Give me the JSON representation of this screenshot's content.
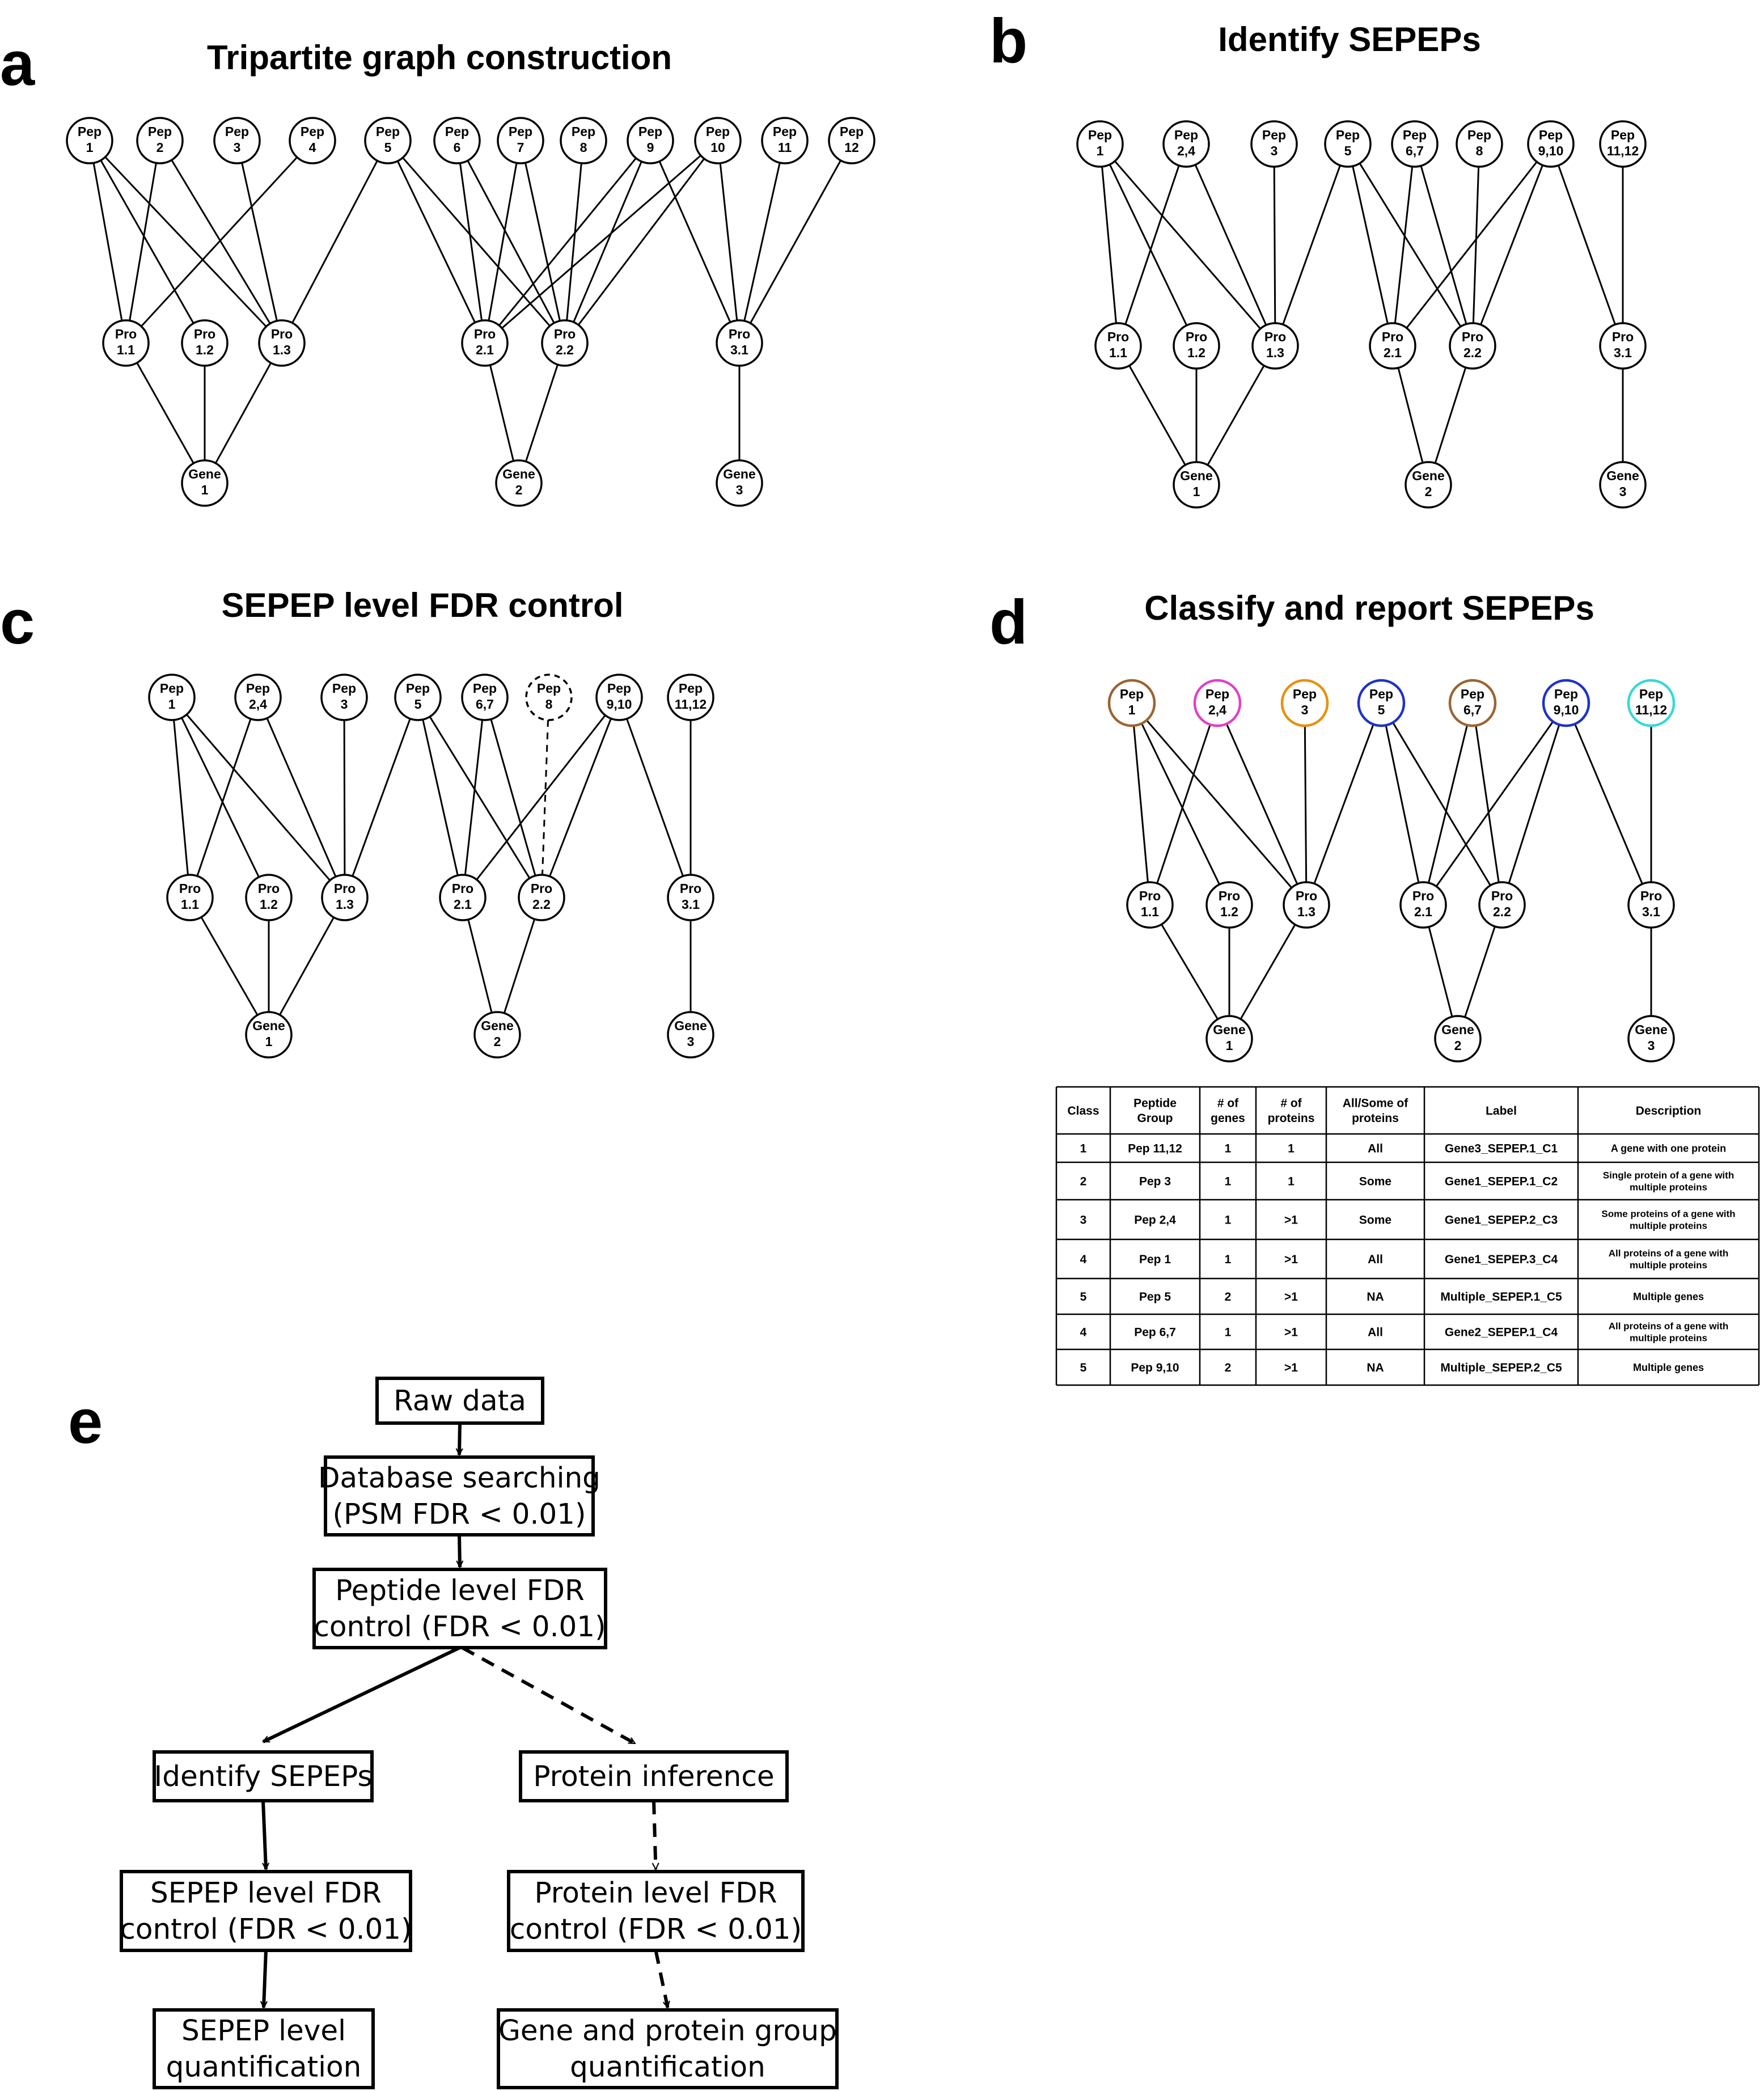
{
  "panels": {
    "a": {
      "letter": "a",
      "title": "Tripartite graph construction"
    },
    "b": {
      "letter": "b",
      "title": "Identify SEPEPs"
    },
    "c": {
      "letter": "c",
      "title": "SEPEP level FDR control"
    },
    "d": {
      "letter": "d",
      "title": "Classify and report SEPEPs"
    },
    "e": {
      "letter": "e"
    }
  },
  "graphs": {
    "a": {
      "nodes": [
        {
          "id": "p1",
          "lines": [
            "Pep",
            "1"
          ]
        },
        {
          "id": "p2",
          "lines": [
            "Pep",
            "2"
          ]
        },
        {
          "id": "p3",
          "lines": [
            "Pep",
            "3"
          ]
        },
        {
          "id": "p4",
          "lines": [
            "Pep",
            "4"
          ]
        },
        {
          "id": "p5",
          "lines": [
            "Pep",
            "5"
          ]
        },
        {
          "id": "p6",
          "lines": [
            "Pep",
            "6"
          ]
        },
        {
          "id": "p7",
          "lines": [
            "Pep",
            "7"
          ]
        },
        {
          "id": "p8",
          "lines": [
            "Pep",
            "8"
          ]
        },
        {
          "id": "p9",
          "lines": [
            "Pep",
            "9"
          ]
        },
        {
          "id": "p10",
          "lines": [
            "Pep",
            "10"
          ]
        },
        {
          "id": "p11",
          "lines": [
            "Pep",
            "11"
          ]
        },
        {
          "id": "p12",
          "lines": [
            "Pep",
            "12"
          ]
        },
        {
          "id": "r11",
          "lines": [
            "Pro",
            "1.1"
          ]
        },
        {
          "id": "r12",
          "lines": [
            "Pro",
            "1.2"
          ]
        },
        {
          "id": "r13",
          "lines": [
            "Pro",
            "1.3"
          ]
        },
        {
          "id": "r21",
          "lines": [
            "Pro",
            "2.1"
          ]
        },
        {
          "id": "r22",
          "lines": [
            "Pro",
            "2.2"
          ]
        },
        {
          "id": "r31",
          "lines": [
            "Pro",
            "3.1"
          ]
        },
        {
          "id": "g1",
          "lines": [
            "Gene",
            "1"
          ]
        },
        {
          "id": "g2",
          "lines": [
            "Gene",
            "2"
          ]
        },
        {
          "id": "g3",
          "lines": [
            "Gene",
            "3"
          ]
        }
      ],
      "edges": [
        [
          "p1",
          "r11"
        ],
        [
          "p1",
          "r12"
        ],
        [
          "p1",
          "r13"
        ],
        [
          "p2",
          "r11"
        ],
        [
          "p2",
          "r13"
        ],
        [
          "p3",
          "r13"
        ],
        [
          "p4",
          "r11"
        ],
        [
          "p5",
          "r13"
        ],
        [
          "p5",
          "r21"
        ],
        [
          "p5",
          "r22"
        ],
        [
          "p6",
          "r21"
        ],
        [
          "p6",
          "r22"
        ],
        [
          "p7",
          "r21"
        ],
        [
          "p7",
          "r22"
        ],
        [
          "p8",
          "r22"
        ],
        [
          "p9",
          "r21"
        ],
        [
          "p9",
          "r22"
        ],
        [
          "p9",
          "r31"
        ],
        [
          "p10",
          "r21"
        ],
        [
          "p10",
          "r22"
        ],
        [
          "p10",
          "r31"
        ],
        [
          "p11",
          "r31"
        ],
        [
          "p12",
          "r31"
        ],
        [
          "r11",
          "g1"
        ],
        [
          "r12",
          "g1"
        ],
        [
          "r13",
          "g1"
        ],
        [
          "r21",
          "g2"
        ],
        [
          "r22",
          "g2"
        ],
        [
          "r31",
          "g3"
        ]
      ]
    },
    "b": {
      "nodes": [
        {
          "id": "p1",
          "lines": [
            "Pep",
            "1"
          ]
        },
        {
          "id": "p24",
          "lines": [
            "Pep",
            "2,4"
          ]
        },
        {
          "id": "p3",
          "lines": [
            "Pep",
            "3"
          ]
        },
        {
          "id": "p5",
          "lines": [
            "Pep",
            "5"
          ]
        },
        {
          "id": "p67",
          "lines": [
            "Pep",
            "6,7"
          ]
        },
        {
          "id": "p8",
          "lines": [
            "Pep",
            "8"
          ]
        },
        {
          "id": "p910",
          "lines": [
            "Pep",
            "9,10"
          ]
        },
        {
          "id": "p1112",
          "lines": [
            "Pep",
            "11,12"
          ]
        },
        {
          "id": "r11",
          "lines": [
            "Pro",
            "1.1"
          ]
        },
        {
          "id": "r12",
          "lines": [
            "Pro",
            "1.2"
          ]
        },
        {
          "id": "r13",
          "lines": [
            "Pro",
            "1.3"
          ]
        },
        {
          "id": "r21",
          "lines": [
            "Pro",
            "2.1"
          ]
        },
        {
          "id": "r22",
          "lines": [
            "Pro",
            "2.2"
          ]
        },
        {
          "id": "r31",
          "lines": [
            "Pro",
            "3.1"
          ]
        },
        {
          "id": "g1",
          "lines": [
            "Gene",
            "1"
          ]
        },
        {
          "id": "g2",
          "lines": [
            "Gene",
            "2"
          ]
        },
        {
          "id": "g3",
          "lines": [
            "Gene",
            "3"
          ]
        }
      ],
      "edges": [
        [
          "p1",
          "r11"
        ],
        [
          "p1",
          "r12"
        ],
        [
          "p1",
          "r13"
        ],
        [
          "p24",
          "r11"
        ],
        [
          "p24",
          "r13"
        ],
        [
          "p3",
          "r13"
        ],
        [
          "p5",
          "r13"
        ],
        [
          "p5",
          "r21"
        ],
        [
          "p5",
          "r22"
        ],
        [
          "p67",
          "r21"
        ],
        [
          "p67",
          "r22"
        ],
        [
          "p8",
          "r22"
        ],
        [
          "p910",
          "r21"
        ],
        [
          "p910",
          "r22"
        ],
        [
          "p910",
          "r31"
        ],
        [
          "p1112",
          "r31"
        ],
        [
          "r11",
          "g1"
        ],
        [
          "r12",
          "g1"
        ],
        [
          "r13",
          "g1"
        ],
        [
          "r21",
          "g2"
        ],
        [
          "r22",
          "g2"
        ],
        [
          "r31",
          "g3"
        ]
      ]
    },
    "c": {
      "nodes": [
        {
          "id": "p1",
          "lines": [
            "Pep",
            "1"
          ]
        },
        {
          "id": "p24",
          "lines": [
            "Pep",
            "2,4"
          ]
        },
        {
          "id": "p3",
          "lines": [
            "Pep",
            "3"
          ]
        },
        {
          "id": "p5",
          "lines": [
            "Pep",
            "5"
          ]
        },
        {
          "id": "p67",
          "lines": [
            "Pep",
            "6,7"
          ]
        },
        {
          "id": "p8",
          "lines": [
            "Pep",
            "8"
          ],
          "dashed": true
        },
        {
          "id": "p910",
          "lines": [
            "Pep",
            "9,10"
          ]
        },
        {
          "id": "p1112",
          "lines": [
            "Pep",
            "11,12"
          ]
        },
        {
          "id": "r11",
          "lines": [
            "Pro",
            "1.1"
          ]
        },
        {
          "id": "r12",
          "lines": [
            "Pro",
            "1.2"
          ]
        },
        {
          "id": "r13",
          "lines": [
            "Pro",
            "1.3"
          ]
        },
        {
          "id": "r21",
          "lines": [
            "Pro",
            "2.1"
          ]
        },
        {
          "id": "r22",
          "lines": [
            "Pro",
            "2.2"
          ]
        },
        {
          "id": "r31",
          "lines": [
            "Pro",
            "3.1"
          ]
        },
        {
          "id": "g1",
          "lines": [
            "Gene",
            "1"
          ]
        },
        {
          "id": "g2",
          "lines": [
            "Gene",
            "2"
          ]
        },
        {
          "id": "g3",
          "lines": [
            "Gene",
            "3"
          ]
        }
      ],
      "edges": [
        [
          "p1",
          "r11"
        ],
        [
          "p1",
          "r12"
        ],
        [
          "p1",
          "r13"
        ],
        [
          "p24",
          "r11"
        ],
        [
          "p24",
          "r13"
        ],
        [
          "p3",
          "r13"
        ],
        [
          "p5",
          "r13"
        ],
        [
          "p5",
          "r21"
        ],
        [
          "p5",
          "r22"
        ],
        [
          "p67",
          "r21"
        ],
        [
          "p67",
          "r22"
        ],
        [
          "p8",
          "r22",
          "dashed"
        ],
        [
          "p910",
          "r21"
        ],
        [
          "p910",
          "r22"
        ],
        [
          "p910",
          "r31"
        ],
        [
          "p1112",
          "r31"
        ],
        [
          "r11",
          "g1"
        ],
        [
          "r12",
          "g1"
        ],
        [
          "r13",
          "g1"
        ],
        [
          "r21",
          "g2"
        ],
        [
          "r22",
          "g2"
        ],
        [
          "r31",
          "g3"
        ]
      ]
    },
    "d": {
      "nodes": [
        {
          "id": "p1",
          "lines": [
            "Pep",
            "1"
          ],
          "color": "#9c6431"
        },
        {
          "id": "p24",
          "lines": [
            "Pep",
            "2,4"
          ],
          "color": "#e040c8"
        },
        {
          "id": "p3",
          "lines": [
            "Pep",
            "3"
          ],
          "color": "#e8900c"
        },
        {
          "id": "p5",
          "lines": [
            "Pep",
            "5"
          ],
          "color": "#1f33c6"
        },
        {
          "id": "p67",
          "lines": [
            "Pep",
            "6,7"
          ],
          "color": "#9c6431"
        },
        {
          "id": "p910",
          "lines": [
            "Pep",
            "9,10"
          ],
          "color": "#1f33c6"
        },
        {
          "id": "p1112",
          "lines": [
            "Pep",
            "11,12"
          ],
          "color": "#36d8d8"
        },
        {
          "id": "r11",
          "lines": [
            "Pro",
            "1.1"
          ]
        },
        {
          "id": "r12",
          "lines": [
            "Pro",
            "1.2"
          ]
        },
        {
          "id": "r13",
          "lines": [
            "Pro",
            "1.3"
          ]
        },
        {
          "id": "r21",
          "lines": [
            "Pro",
            "2.1"
          ]
        },
        {
          "id": "r22",
          "lines": [
            "Pro",
            "2.2"
          ]
        },
        {
          "id": "r31",
          "lines": [
            "Pro",
            "3.1"
          ]
        },
        {
          "id": "g1",
          "lines": [
            "Gene",
            "1"
          ]
        },
        {
          "id": "g2",
          "lines": [
            "Gene",
            "2"
          ]
        },
        {
          "id": "g3",
          "lines": [
            "Gene",
            "3"
          ]
        }
      ],
      "edges": [
        [
          "p1",
          "r11"
        ],
        [
          "p1",
          "r12"
        ],
        [
          "p1",
          "r13"
        ],
        [
          "p24",
          "r11"
        ],
        [
          "p24",
          "r13"
        ],
        [
          "p3",
          "r13"
        ],
        [
          "p5",
          "r13"
        ],
        [
          "p5",
          "r21"
        ],
        [
          "p5",
          "r22"
        ],
        [
          "p67",
          "r21"
        ],
        [
          "p67",
          "r22"
        ],
        [
          "p910",
          "r21"
        ],
        [
          "p910",
          "r22"
        ],
        [
          "p910",
          "r31"
        ],
        [
          "p1112",
          "r31"
        ],
        [
          "r11",
          "g1"
        ],
        [
          "r12",
          "g1"
        ],
        [
          "r13",
          "g1"
        ],
        [
          "r21",
          "g2"
        ],
        [
          "r22",
          "g2"
        ],
        [
          "r31",
          "g3"
        ]
      ]
    }
  },
  "table": {
    "headers": [
      [
        "Class"
      ],
      [
        "Peptide",
        "Group"
      ],
      [
        "# of",
        "genes"
      ],
      [
        "# of",
        "proteins"
      ],
      [
        "All/Some of",
        "proteins"
      ],
      [
        "Label"
      ],
      [
        "Description"
      ]
    ],
    "rows": [
      [
        [
          "1"
        ],
        [
          "Pep 11,12"
        ],
        [
          "1"
        ],
        [
          "1"
        ],
        [
          "All"
        ],
        [
          "Gene3_SEPEP.1_C1"
        ],
        [
          "A gene with one protein"
        ]
      ],
      [
        [
          "2"
        ],
        [
          "Pep 3"
        ],
        [
          "1"
        ],
        [
          "1"
        ],
        [
          "Some"
        ],
        [
          "Gene1_SEPEP.1_C2"
        ],
        [
          "Single protein of a gene with",
          "multiple proteins"
        ]
      ],
      [
        [
          "3"
        ],
        [
          "Pep 2,4"
        ],
        [
          "1"
        ],
        [
          ">1"
        ],
        [
          "Some"
        ],
        [
          "Gene1_SEPEP.2_C3"
        ],
        [
          "Some proteins of a gene with",
          "multiple proteins"
        ]
      ],
      [
        [
          "4"
        ],
        [
          "Pep 1"
        ],
        [
          "1"
        ],
        [
          ">1"
        ],
        [
          "All"
        ],
        [
          "Gene1_SEPEP.3_C4"
        ],
        [
          "All proteins of a gene with",
          "multiple proteins"
        ]
      ],
      [
        [
          "5"
        ],
        [
          "Pep 5"
        ],
        [
          "2"
        ],
        [
          ">1"
        ],
        [
          "NA"
        ],
        [
          "Multiple_SEPEP.1_C5"
        ],
        [
          "Multiple genes"
        ]
      ],
      [
        [
          "4"
        ],
        [
          "Pep 6,7"
        ],
        [
          "1"
        ],
        [
          ">1"
        ],
        [
          "All"
        ],
        [
          "Gene2_SEPEP.1_C4"
        ],
        [
          "All proteins of a gene with",
          "multiple proteins"
        ]
      ],
      [
        [
          "5"
        ],
        [
          "Pep 9,10"
        ],
        [
          "2"
        ],
        [
          ">1"
        ],
        [
          "NA"
        ],
        [
          "Multiple_SEPEP.2_C5"
        ],
        [
          "Multiple genes"
        ]
      ]
    ]
  },
  "flowchart": {
    "boxes": [
      {
        "id": "raw",
        "lines": [
          "Raw data"
        ]
      },
      {
        "id": "db",
        "lines": [
          "Database searching",
          "(PSM FDR < 0.01)"
        ]
      },
      {
        "id": "pep",
        "lines": [
          "Peptide level FDR",
          "control (FDR < 0.01)"
        ]
      },
      {
        "id": "idsepep",
        "lines": [
          "Identify SEPEPs"
        ]
      },
      {
        "id": "protinf",
        "lines": [
          "Protein inference"
        ]
      },
      {
        "id": "sepepfdr",
        "lines": [
          "SEPEP level FDR",
          "control (FDR < 0.01)"
        ]
      },
      {
        "id": "protfdr",
        "lines": [
          "Protein level FDR",
          "control (FDR < 0.01)"
        ]
      },
      {
        "id": "sepepq",
        "lines": [
          "SEPEP level",
          "quantification"
        ]
      },
      {
        "id": "geneq",
        "lines": [
          "Gene and protein group",
          "quantification"
        ]
      }
    ],
    "arrows": [
      {
        "from": "raw",
        "to": "db",
        "style": "solid"
      },
      {
        "from": "db",
        "to": "pep",
        "style": "solid"
      },
      {
        "from": "pep",
        "to": "idsepep",
        "style": "solid"
      },
      {
        "from": "pep",
        "to": "protinf",
        "style": "dashed"
      },
      {
        "from": "idsepep",
        "to": "sepepfdr",
        "style": "solid"
      },
      {
        "from": "protinf",
        "to": "protfdr",
        "style": "dashed"
      },
      {
        "from": "sepepfdr",
        "to": "sepepq",
        "style": "solid"
      },
      {
        "from": "protfdr",
        "to": "geneq",
        "style": "dashed"
      }
    ]
  }
}
